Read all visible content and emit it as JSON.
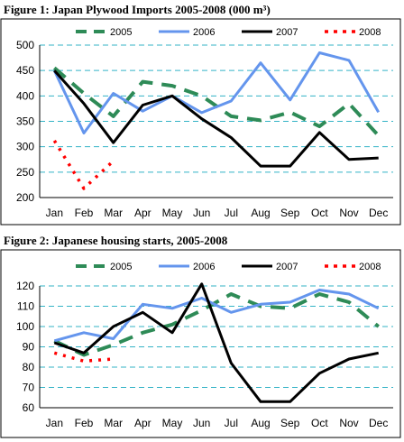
{
  "figures": [
    {
      "heading": "Figure 1: Japan Plywood Imports 2005-2008 (000 m³)",
      "chart_data": {
        "type": "line",
        "title": "",
        "xlabel": "",
        "ylabel": "",
        "categories": [
          "Jan",
          "Feb",
          "Mar",
          "Apr",
          "May",
          "Jun",
          "Jul",
          "Aug",
          "Sep",
          "Oct",
          "Nov",
          "Dec"
        ],
        "ylim": [
          200,
          500
        ],
        "yticks": [
          200,
          250,
          300,
          350,
          400,
          450,
          500
        ],
        "grid": "horizontal dashed",
        "legend": "top",
        "series": [
          {
            "name": "2005",
            "color": "#2e8b57",
            "style": "long-dash",
            "values": [
              455,
              405,
              360,
              428,
              420,
              400,
              360,
              352,
              368,
              340,
              385,
              322
            ]
          },
          {
            "name": "2006",
            "color": "#6495ed",
            "style": "solid",
            "values": [
              450,
              327,
              405,
              370,
              400,
              367,
              390,
              465,
              392,
              485,
              470,
              368
            ]
          },
          {
            "name": "2007",
            "color": "#000000",
            "style": "solid",
            "values": [
              450,
              385,
              308,
              382,
              400,
              355,
              318,
              262,
              262,
              328,
              275,
              278
            ]
          },
          {
            "name": "2008",
            "color": "#ff0000",
            "style": "dotted",
            "values": [
              312,
              218,
              272,
              null,
              null,
              null,
              null,
              null,
              null,
              null,
              null,
              null
            ]
          }
        ]
      }
    },
    {
      "heading": "Figure 2: Japanese housing starts, 2005-2008",
      "chart_data": {
        "type": "line",
        "title": "",
        "xlabel": "",
        "ylabel": "",
        "categories": [
          "Jan",
          "Feb",
          "Mar",
          "Apr",
          "May",
          "Jun",
          "Jul",
          "Aug",
          "Sep",
          "Oct",
          "Nov",
          "Dec"
        ],
        "ylim": [
          60,
          120
        ],
        "yticks": [
          60,
          70,
          80,
          90,
          100,
          110,
          120
        ],
        "grid": "horizontal dashed",
        "legend": "top",
        "series": [
          {
            "name": "2005",
            "color": "#2e8b57",
            "style": "long-dash",
            "values": [
              93,
              86,
              91,
              97,
              101,
              108,
              116,
              110,
              109,
              116,
              112,
              100
            ]
          },
          {
            "name": "2006",
            "color": "#6495ed",
            "style": "solid",
            "values": [
              93,
              97,
              94,
              111,
              109,
              114,
              107,
              111,
              112,
              118,
              116,
              109
            ]
          },
          {
            "name": "2007",
            "color": "#000000",
            "style": "solid",
            "values": [
              92,
              87,
              100,
              107,
              97,
              121,
              82,
              63,
              63,
              77,
              84,
              87
            ]
          },
          {
            "name": "2008",
            "color": "#ff0000",
            "style": "dotted",
            "values": [
              87,
              83,
              84,
              null,
              null,
              null,
              null,
              null,
              null,
              null,
              null,
              null
            ]
          }
        ]
      }
    }
  ]
}
